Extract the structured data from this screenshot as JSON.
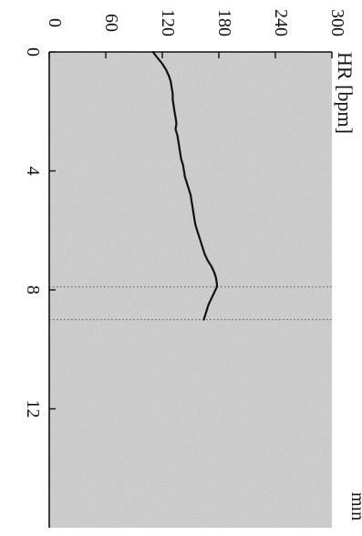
{
  "chart_data": {
    "type": "line",
    "orientation": "rotated-90",
    "xlabel": "min",
    "ylabel": "HR [bpm]",
    "xlim": [
      0,
      16
    ],
    "ylim": [
      0,
      300
    ],
    "x_ticks": [
      0,
      4,
      8,
      12
    ],
    "x_tick_labels": [
      "0",
      "4",
      "8",
      "12"
    ],
    "y_ticks": [
      0,
      60,
      120,
      180,
      240,
      300
    ],
    "y_tick_labels": [
      "0",
      "60",
      "120",
      "180",
      "240",
      "300"
    ],
    "grid": false,
    "reference_lines_x": [
      7.9,
      9.0
    ],
    "colors": {
      "plot_background": "#dedede",
      "line": "#111111",
      "reference_line": "#555555",
      "axis": "#111111"
    },
    "series": [
      {
        "x": [
          0,
          0.2,
          0.4,
          0.6,
          0.8,
          1.0,
          1.2,
          1.4,
          1.6,
          1.8,
          2.0,
          2.2,
          2.4,
          2.6,
          2.8,
          3.0,
          3.2,
          3.4,
          3.6,
          3.8,
          4.0,
          4.2,
          4.4,
          4.6,
          4.8,
          5.0,
          5.2,
          5.4,
          5.6,
          5.8,
          6.0,
          6.2,
          6.4,
          6.6,
          6.8,
          7.0,
          7.2,
          7.4,
          7.6,
          7.8,
          7.9,
          8.1,
          8.3,
          8.5,
          8.7,
          8.9,
          9.0
        ],
        "y": [
          110,
          115,
          120,
          124,
          127,
          129,
          130,
          131,
          131,
          132,
          133,
          134,
          135,
          134,
          136,
          137,
          138,
          139,
          140,
          142,
          143,
          144,
          146,
          148,
          150,
          151,
          152,
          153,
          154,
          155,
          157,
          159,
          161,
          163,
          165,
          168,
          172,
          175,
          177,
          178,
          178,
          175,
          172,
          169,
          167,
          165,
          164
        ]
      }
    ]
  }
}
